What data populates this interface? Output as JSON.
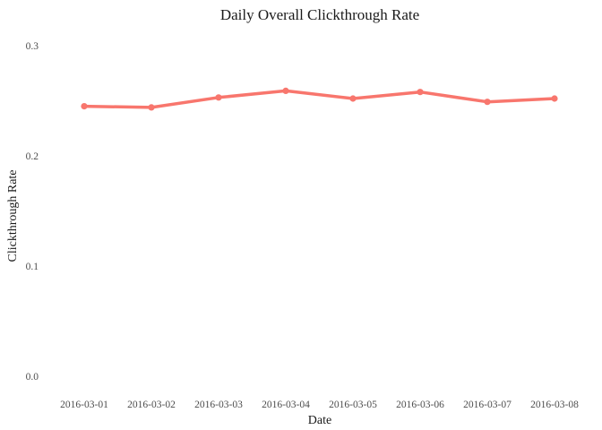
{
  "chart_data": {
    "type": "line",
    "title": "Daily Overall Clickthrough Rate",
    "xlabel": "Date",
    "ylabel": "Clickthrough Rate",
    "categories": [
      "2016-03-01",
      "2016-03-02",
      "2016-03-03",
      "2016-03-04",
      "2016-03-05",
      "2016-03-06",
      "2016-03-07",
      "2016-03-08"
    ],
    "series": [
      {
        "values": [
          0.245,
          0.244,
          0.253,
          0.259,
          0.252,
          0.258,
          0.249,
          0.252
        ],
        "color": "#F8766D"
      }
    ],
    "ylim": [
      0,
      0.3
    ],
    "yticks": [
      "0.0",
      "0.1",
      "0.2",
      "0.3"
    ],
    "grid": false,
    "legend": "none"
  }
}
